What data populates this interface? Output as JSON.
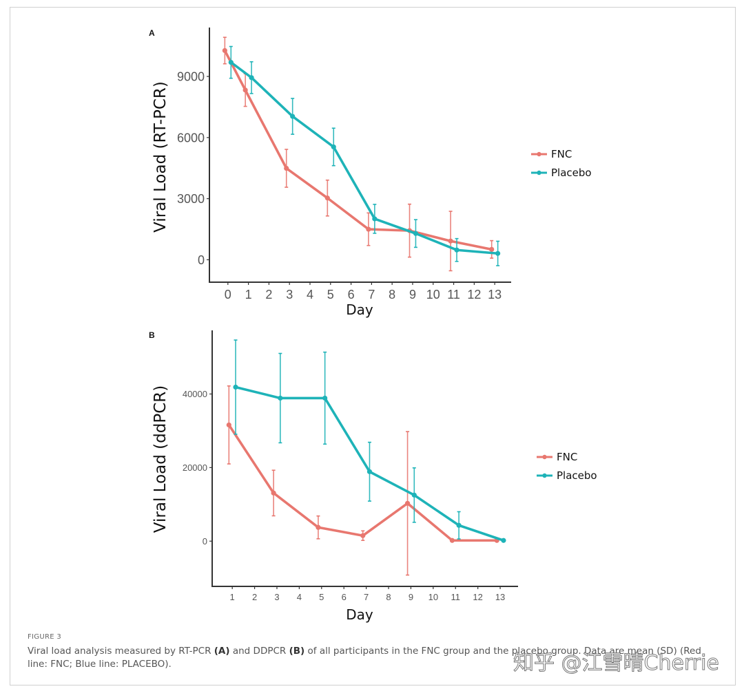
{
  "figure": {
    "number_label": "FIGURE 3",
    "caption_parts": {
      "p1": "Viral load analysis measured by RT-PCR ",
      "b1": "(A)",
      "p2": " and DDPCR ",
      "b2": "(B)",
      "p3": " of all participants in the FNC group and the placebo group. Data are mean (SD) (Red line: FNC; Blue line: PLACEBO)."
    },
    "watermark": "知乎 @江雪晴Cherrie"
  },
  "colors": {
    "fnc": "#e8776f",
    "placebo": "#1eb3b8",
    "axis": "#333333"
  },
  "chart_data": [
    {
      "panel": "A",
      "type": "line",
      "title": "",
      "xlabel": "Day",
      "ylabel": "Viral Load (RT-PCR)",
      "xlim": [
        -0.9,
        13.8
      ],
      "ylim": [
        -1100,
        11400
      ],
      "xticks": [
        0,
        1,
        2,
        3,
        4,
        5,
        6,
        7,
        8,
        9,
        10,
        11,
        12,
        13
      ],
      "yticks": [
        0,
        3000,
        6000,
        9000
      ],
      "ytick_labels": [
        "0",
        "3000",
        "6000",
        "9000"
      ],
      "grid": false,
      "legend_position": "right",
      "dodge": 0.15,
      "series": [
        {
          "name": "FNC",
          "x": [
            0,
            1,
            3,
            5,
            7,
            9,
            11,
            13
          ],
          "y": [
            10270,
            8330,
            4490,
            3030,
            1500,
            1430,
            920,
            510
          ],
          "err": [
            650,
            800,
            930,
            880,
            800,
            1300,
            1460,
            430
          ]
        },
        {
          "name": "Placebo",
          "x": [
            0,
            1,
            3,
            5,
            7,
            9,
            11,
            13
          ],
          "y": [
            9690,
            8940,
            7040,
            5540,
            2010,
            1290,
            480,
            310
          ],
          "err": [
            780,
            780,
            880,
            920,
            710,
            680,
            560,
            600
          ]
        }
      ]
    },
    {
      "panel": "B",
      "type": "line",
      "title": "",
      "xlabel": "Day",
      "ylabel": "Viral Load (ddPCR)",
      "xlim": [
        0.1,
        13.8
      ],
      "ylim": [
        -12300,
        57300
      ],
      "xticks": [
        1,
        2,
        3,
        4,
        5,
        6,
        7,
        8,
        9,
        10,
        11,
        12,
        13
      ],
      "yticks": [
        0,
        20000,
        40000
      ],
      "ytick_labels": [
        "0",
        "20000",
        "40000"
      ],
      "grid": false,
      "legend_position": "right",
      "dodge": 0.15,
      "series": [
        {
          "name": "FNC",
          "x": [
            1,
            3,
            5,
            7,
            9,
            11,
            13
          ],
          "y": [
            31590,
            13080,
            3740,
            1500,
            10280,
            190,
            190
          ],
          "err": [
            10600,
            6200,
            3100,
            1300,
            19500,
            0,
            300
          ]
        },
        {
          "name": "Placebo",
          "x": [
            1,
            3,
            5,
            7,
            9,
            11,
            13
          ],
          "y": [
            41870,
            38880,
            38880,
            18880,
            12520,
            4300,
            190
          ],
          "err": [
            12800,
            12150,
            12500,
            8000,
            7400,
            3700,
            300
          ]
        }
      ]
    }
  ]
}
